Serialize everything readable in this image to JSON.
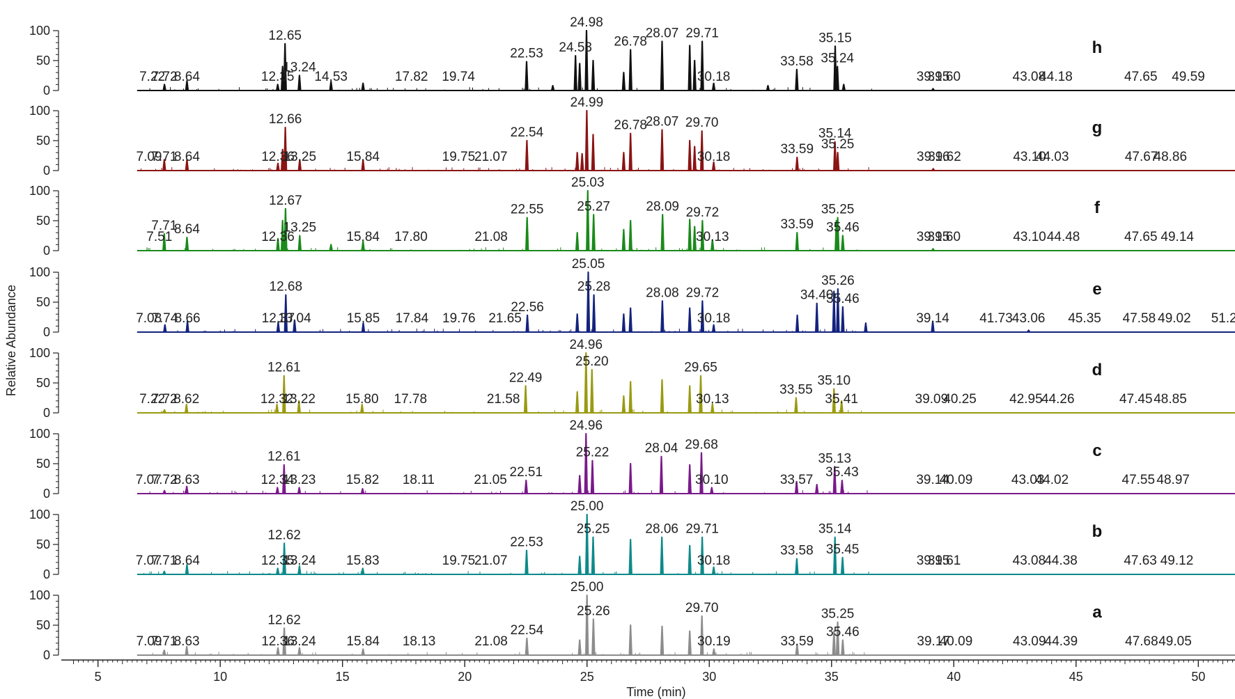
{
  "chart_data": {
    "type": "line",
    "subtype": "stacked chromatograms",
    "xlabel": "Time (min)",
    "ylabel": "Relative Abundance",
    "xlim": [
      3.5,
      51.5
    ],
    "xticks": [
      5,
      10,
      15,
      20,
      25,
      30,
      35,
      40,
      45,
      50
    ],
    "ylim": [
      0,
      100
    ],
    "yticks": [
      0,
      50,
      100
    ],
    "grid": false,
    "panels": [
      {
        "name": "h",
        "color": "#111111",
        "labels": [
          "7.22",
          "7.72",
          "8.64",
          "12.35",
          "12.65",
          "13.24",
          "14.53",
          "17.82",
          "19.74",
          "22.53",
          "24.53",
          "24.98",
          "26.78",
          "28.07",
          "29.71",
          "30.18",
          "33.58",
          "35.15",
          "35.24",
          "39.15",
          "39.60",
          "43.08",
          "44.18",
          "47.65",
          "49.59"
        ],
        "peaks": [
          {
            "x": 7.72,
            "y": 10
          },
          {
            "x": 8.64,
            "y": 16
          },
          {
            "x": 12.35,
            "y": 10
          },
          {
            "x": 12.55,
            "y": 40
          },
          {
            "x": 12.65,
            "y": 78
          },
          {
            "x": 13.24,
            "y": 25
          },
          {
            "x": 14.53,
            "y": 15
          },
          {
            "x": 15.84,
            "y": 12
          },
          {
            "x": 22.53,
            "y": 48
          },
          {
            "x": 23.6,
            "y": 8
          },
          {
            "x": 24.53,
            "y": 58
          },
          {
            "x": 24.7,
            "y": 45
          },
          {
            "x": 24.98,
            "y": 100
          },
          {
            "x": 25.25,
            "y": 50
          },
          {
            "x": 26.5,
            "y": 30
          },
          {
            "x": 26.78,
            "y": 68
          },
          {
            "x": 28.07,
            "y": 82
          },
          {
            "x": 29.2,
            "y": 75
          },
          {
            "x": 29.4,
            "y": 50
          },
          {
            "x": 29.71,
            "y": 82
          },
          {
            "x": 30.18,
            "y": 12
          },
          {
            "x": 32.4,
            "y": 8
          },
          {
            "x": 33.58,
            "y": 35
          },
          {
            "x": 35.15,
            "y": 74
          },
          {
            "x": 35.24,
            "y": 40
          },
          {
            "x": 35.5,
            "y": 10
          },
          {
            "x": 39.15,
            "y": 3
          }
        ]
      },
      {
        "name": "g",
        "color": "#8b1414",
        "labels": [
          "7.09",
          "7.71",
          "8.64",
          "12.36",
          "12.66",
          "13.25",
          "15.84",
          "19.75",
          "21.07",
          "22.54",
          "24.99",
          "26.78",
          "28.07",
          "29.70",
          "30.18",
          "33.59",
          "35.14",
          "35.25",
          "39.16",
          "39.62",
          "43.10",
          "44.03",
          "47.67",
          "48.86"
        ],
        "peaks": [
          {
            "x": 7.71,
            "y": 18
          },
          {
            "x": 8.64,
            "y": 18
          },
          {
            "x": 12.36,
            "y": 12
          },
          {
            "x": 12.55,
            "y": 35
          },
          {
            "x": 12.66,
            "y": 72
          },
          {
            "x": 13.25,
            "y": 18
          },
          {
            "x": 15.84,
            "y": 18
          },
          {
            "x": 22.54,
            "y": 50
          },
          {
            "x": 24.6,
            "y": 30
          },
          {
            "x": 24.8,
            "y": 28
          },
          {
            "x": 24.99,
            "y": 100
          },
          {
            "x": 25.25,
            "y": 60
          },
          {
            "x": 26.5,
            "y": 30
          },
          {
            "x": 26.78,
            "y": 62
          },
          {
            "x": 28.07,
            "y": 68
          },
          {
            "x": 29.2,
            "y": 50
          },
          {
            "x": 29.4,
            "y": 40
          },
          {
            "x": 29.7,
            "y": 66
          },
          {
            "x": 30.18,
            "y": 14
          },
          {
            "x": 33.59,
            "y": 22
          },
          {
            "x": 35.14,
            "y": 48
          },
          {
            "x": 35.25,
            "y": 30
          },
          {
            "x": 39.16,
            "y": 3
          }
        ]
      },
      {
        "name": "f",
        "color": "#1a8a1a",
        "labels": [
          "7.51",
          "7.71",
          "8.64",
          "12.36",
          "12.67",
          "13.25",
          "15.84",
          "17.80",
          "21.08",
          "22.55",
          "25.03",
          "25.27",
          "28.09",
          "29.72",
          "30.13",
          "33.59",
          "35.25",
          "35.46",
          "39.15",
          "39.60",
          "43.10",
          "44.48",
          "47.65",
          "49.14"
        ],
        "peaks": [
          {
            "x": 7.71,
            "y": 28
          },
          {
            "x": 8.64,
            "y": 22
          },
          {
            "x": 12.36,
            "y": 20
          },
          {
            "x": 12.55,
            "y": 50
          },
          {
            "x": 12.67,
            "y": 70
          },
          {
            "x": 13.25,
            "y": 25
          },
          {
            "x": 14.53,
            "y": 10
          },
          {
            "x": 15.84,
            "y": 16
          },
          {
            "x": 22.55,
            "y": 55
          },
          {
            "x": 24.6,
            "y": 30
          },
          {
            "x": 25.03,
            "y": 100
          },
          {
            "x": 25.27,
            "y": 60
          },
          {
            "x": 26.5,
            "y": 35
          },
          {
            "x": 26.78,
            "y": 50
          },
          {
            "x": 28.09,
            "y": 60
          },
          {
            "x": 29.2,
            "y": 52
          },
          {
            "x": 29.4,
            "y": 40
          },
          {
            "x": 29.72,
            "y": 50
          },
          {
            "x": 30.13,
            "y": 18
          },
          {
            "x": 33.59,
            "y": 30
          },
          {
            "x": 35.2,
            "y": 50
          },
          {
            "x": 35.25,
            "y": 55
          },
          {
            "x": 35.46,
            "y": 25
          },
          {
            "x": 39.15,
            "y": 3
          }
        ]
      },
      {
        "name": "e",
        "color": "#14237d",
        "labels": [
          "7.08",
          "7.74",
          "8.66",
          "12.37",
          "12.68",
          "13.04",
          "15.85",
          "17.84",
          "19.76",
          "21.65",
          "22.56",
          "25.05",
          "25.28",
          "28.08",
          "29.72",
          "30.18",
          "34.40",
          "35.26",
          "35.46",
          "39.14",
          "41.73",
          "43.06",
          "45.35",
          "47.58",
          "49.02",
          "51.20"
        ],
        "peaks": [
          {
            "x": 7.74,
            "y": 12
          },
          {
            "x": 8.66,
            "y": 18
          },
          {
            "x": 12.37,
            "y": 16
          },
          {
            "x": 12.68,
            "y": 62
          },
          {
            "x": 13.04,
            "y": 20
          },
          {
            "x": 15.85,
            "y": 15
          },
          {
            "x": 22.56,
            "y": 28
          },
          {
            "x": 24.6,
            "y": 30
          },
          {
            "x": 25.05,
            "y": 100
          },
          {
            "x": 25.28,
            "y": 62
          },
          {
            "x": 26.5,
            "y": 30
          },
          {
            "x": 26.78,
            "y": 40
          },
          {
            "x": 28.08,
            "y": 52
          },
          {
            "x": 29.2,
            "y": 40
          },
          {
            "x": 29.72,
            "y": 52
          },
          {
            "x": 30.18,
            "y": 12
          },
          {
            "x": 33.6,
            "y": 28
          },
          {
            "x": 34.4,
            "y": 48
          },
          {
            "x": 35.1,
            "y": 68
          },
          {
            "x": 35.26,
            "y": 72
          },
          {
            "x": 35.46,
            "y": 42
          },
          {
            "x": 36.4,
            "y": 15
          },
          {
            "x": 39.14,
            "y": 18
          },
          {
            "x": 43.06,
            "y": 3
          }
        ]
      },
      {
        "name": "d",
        "color": "#9a9a12",
        "labels": [
          "7.22",
          "7.72",
          "8.62",
          "12.32",
          "12.61",
          "13.22",
          "15.80",
          "17.78",
          "21.58",
          "22.49",
          "24.96",
          "25.20",
          "29.65",
          "30.13",
          "33.55",
          "35.10",
          "35.41",
          "39.09",
          "40.25",
          "42.95",
          "44.26",
          "47.45",
          "48.85"
        ],
        "peaks": [
          {
            "x": 7.72,
            "y": 5
          },
          {
            "x": 8.62,
            "y": 14
          },
          {
            "x": 12.32,
            "y": 14
          },
          {
            "x": 12.61,
            "y": 62
          },
          {
            "x": 13.22,
            "y": 20
          },
          {
            "x": 15.8,
            "y": 14
          },
          {
            "x": 22.49,
            "y": 45
          },
          {
            "x": 24.6,
            "y": 35
          },
          {
            "x": 24.96,
            "y": 100
          },
          {
            "x": 25.2,
            "y": 72
          },
          {
            "x": 26.5,
            "y": 28
          },
          {
            "x": 26.78,
            "y": 52
          },
          {
            "x": 28.07,
            "y": 55
          },
          {
            "x": 29.2,
            "y": 45
          },
          {
            "x": 29.65,
            "y": 62
          },
          {
            "x": 30.13,
            "y": 15
          },
          {
            "x": 33.55,
            "y": 25
          },
          {
            "x": 35.1,
            "y": 40
          },
          {
            "x": 35.41,
            "y": 20
          }
        ]
      },
      {
        "name": "c",
        "color": "#7a1a8a",
        "labels": [
          "7.07",
          "7.72",
          "8.63",
          "12.34",
          "12.61",
          "13.23",
          "15.82",
          "18.11",
          "21.05",
          "22.51",
          "24.96",
          "25.22",
          "28.04",
          "29.68",
          "30.10",
          "33.57",
          "35.13",
          "35.43",
          "39.14",
          "40.09",
          "43.03",
          "44.02",
          "47.55",
          "48.97"
        ],
        "peaks": [
          {
            "x": 7.72,
            "y": 5
          },
          {
            "x": 8.63,
            "y": 12
          },
          {
            "x": 12.34,
            "y": 10
          },
          {
            "x": 12.61,
            "y": 48
          },
          {
            "x": 13.23,
            "y": 10
          },
          {
            "x": 15.82,
            "y": 8
          },
          {
            "x": 22.51,
            "y": 22
          },
          {
            "x": 24.7,
            "y": 30
          },
          {
            "x": 24.96,
            "y": 100
          },
          {
            "x": 25.22,
            "y": 55
          },
          {
            "x": 26.78,
            "y": 50
          },
          {
            "x": 28.04,
            "y": 62
          },
          {
            "x": 29.2,
            "y": 48
          },
          {
            "x": 29.68,
            "y": 68
          },
          {
            "x": 30.1,
            "y": 10
          },
          {
            "x": 33.57,
            "y": 20
          },
          {
            "x": 34.4,
            "y": 15
          },
          {
            "x": 35.13,
            "y": 45
          },
          {
            "x": 35.43,
            "y": 22
          }
        ]
      },
      {
        "name": "b",
        "color": "#0e8a8a",
        "labels": [
          "7.07",
          "7.71",
          "8.64",
          "12.35",
          "12.62",
          "13.24",
          "15.83",
          "19.75",
          "21.07",
          "22.53",
          "25.00",
          "25.25",
          "28.06",
          "29.71",
          "30.18",
          "33.58",
          "35.14",
          "35.45",
          "39.15",
          "39.61",
          "43.08",
          "44.38",
          "47.63",
          "49.12"
        ],
        "peaks": [
          {
            "x": 7.71,
            "y": 5
          },
          {
            "x": 8.64,
            "y": 16
          },
          {
            "x": 12.35,
            "y": 10
          },
          {
            "x": 12.62,
            "y": 52
          },
          {
            "x": 13.24,
            "y": 14
          },
          {
            "x": 15.83,
            "y": 10
          },
          {
            "x": 22.53,
            "y": 40
          },
          {
            "x": 24.7,
            "y": 30
          },
          {
            "x": 25.0,
            "y": 100
          },
          {
            "x": 25.25,
            "y": 62
          },
          {
            "x": 26.78,
            "y": 58
          },
          {
            "x": 28.06,
            "y": 62
          },
          {
            "x": 29.2,
            "y": 48
          },
          {
            "x": 29.71,
            "y": 62
          },
          {
            "x": 30.18,
            "y": 12
          },
          {
            "x": 33.58,
            "y": 26
          },
          {
            "x": 35.14,
            "y": 62
          },
          {
            "x": 35.45,
            "y": 28
          }
        ]
      },
      {
        "name": "a",
        "color": "#8c8c8c",
        "labels": [
          "7.09",
          "7.71",
          "8.63",
          "12.36",
          "12.62",
          "13.24",
          "15.84",
          "18.13",
          "21.08",
          "22.54",
          "25.00",
          "25.26",
          "29.70",
          "30.19",
          "33.59",
          "35.25",
          "35.46",
          "39.17",
          "40.09",
          "43.09",
          "44.39",
          "47.68",
          "49.05"
        ],
        "peaks": [
          {
            "x": 7.71,
            "y": 8
          },
          {
            "x": 8.63,
            "y": 14
          },
          {
            "x": 12.36,
            "y": 12
          },
          {
            "x": 12.62,
            "y": 45
          },
          {
            "x": 13.24,
            "y": 12
          },
          {
            "x": 15.84,
            "y": 10
          },
          {
            "x": 22.54,
            "y": 28
          },
          {
            "x": 24.7,
            "y": 25
          },
          {
            "x": 25.0,
            "y": 100
          },
          {
            "x": 25.26,
            "y": 60
          },
          {
            "x": 26.78,
            "y": 50
          },
          {
            "x": 28.07,
            "y": 48
          },
          {
            "x": 29.2,
            "y": 40
          },
          {
            "x": 29.7,
            "y": 65
          },
          {
            "x": 30.19,
            "y": 10
          },
          {
            "x": 33.59,
            "y": 18
          },
          {
            "x": 35.1,
            "y": 40
          },
          {
            "x": 35.25,
            "y": 55
          },
          {
            "x": 35.46,
            "y": 25
          }
        ]
      }
    ]
  }
}
